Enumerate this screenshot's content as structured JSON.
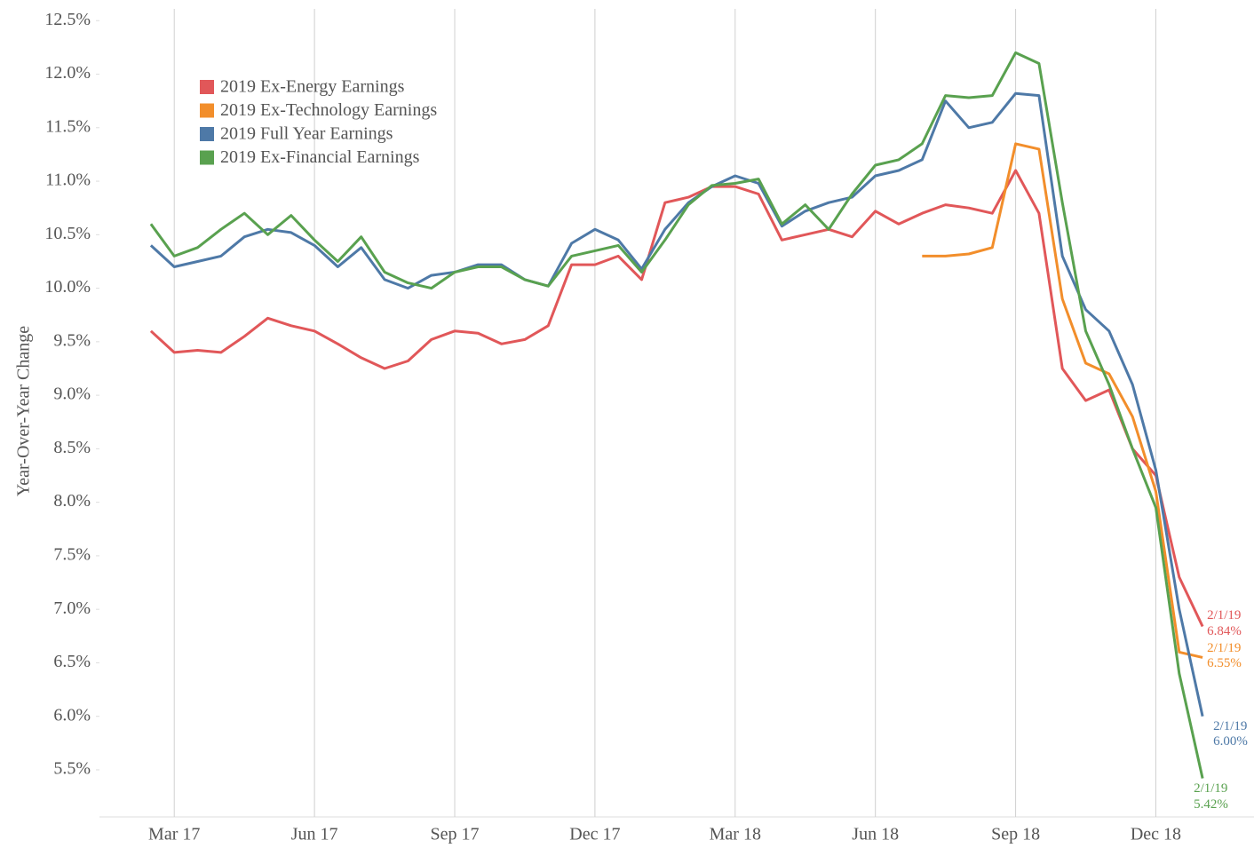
{
  "chart_data": {
    "type": "line",
    "y_label": "Year-Over-Year Change",
    "x": [
      1.5,
      2.0,
      2.5,
      3.0,
      3.5,
      4.0,
      4.5,
      5.0,
      5.5,
      6.0,
      6.5,
      7.0,
      7.5,
      8.0,
      8.5,
      9.0,
      9.5,
      10.0,
      10.5,
      11.0,
      11.5,
      12.0,
      12.5,
      13.0,
      13.5,
      14.0,
      14.5,
      15.0,
      15.5,
      16.0,
      16.5,
      17.0,
      17.5,
      18.0,
      18.5,
      19.0,
      19.5,
      20.0,
      20.5,
      21.0,
      21.5,
      22.0,
      22.5,
      23.0,
      23.5,
      24.0
    ],
    "xlim": [
      0.4,
      25.1
    ],
    "xticks": [
      {
        "value": 2,
        "label": "Mar 17"
      },
      {
        "value": 5,
        "label": "Jun 17"
      },
      {
        "value": 8,
        "label": "Sep 17"
      },
      {
        "value": 11,
        "label": "Dec 17"
      },
      {
        "value": 14,
        "label": "Mar 18"
      },
      {
        "value": 17,
        "label": "Jun 18"
      },
      {
        "value": 20,
        "label": "Sep 18"
      },
      {
        "value": 23,
        "label": "Dec 18"
      }
    ],
    "ylim": [
      5.06,
      12.61
    ],
    "yticks": [
      {
        "value": 5.5,
        "label": "5.5%"
      },
      {
        "value": 6.0,
        "label": "6.0%"
      },
      {
        "value": 6.5,
        "label": "6.5%"
      },
      {
        "value": 7.0,
        "label": "7.0%"
      },
      {
        "value": 7.5,
        "label": "7.5%"
      },
      {
        "value": 8.0,
        "label": "8.0%"
      },
      {
        "value": 8.5,
        "label": "8.5%"
      },
      {
        "value": 9.0,
        "label": "9.0%"
      },
      {
        "value": 9.5,
        "label": "9.5%"
      },
      {
        "value": 10.0,
        "label": "10.0%"
      },
      {
        "value": 10.5,
        "label": "10.5%"
      },
      {
        "value": 11.0,
        "label": "11.0%"
      },
      {
        "value": 11.5,
        "label": "11.5%"
      },
      {
        "value": 12.0,
        "label": "12.0%"
      },
      {
        "value": 12.5,
        "label": "12.5%"
      }
    ],
    "grid": "x",
    "legend": "top-left",
    "series": [
      {
        "name": "2019 Ex-Energy Earnings",
        "color": "#e15759",
        "end_date_label": "2/1/19",
        "values": [
          9.6,
          9.4,
          9.42,
          9.4,
          9.55,
          9.72,
          9.65,
          9.6,
          9.48,
          9.35,
          9.25,
          9.32,
          9.52,
          9.6,
          9.58,
          9.48,
          9.52,
          9.65,
          10.22,
          10.22,
          10.3,
          10.08,
          10.8,
          10.85,
          10.95,
          10.95,
          10.88,
          10.45,
          10.5,
          10.55,
          10.48,
          10.72,
          10.6,
          10.7,
          10.78,
          10.75,
          10.7,
          11.1,
          10.7,
          9.25,
          8.95,
          9.05,
          8.5,
          8.25,
          7.3,
          6.84
        ],
        "value_labels": [
          null,
          null,
          null,
          null,
          null,
          null,
          null,
          null,
          null,
          null,
          null,
          null,
          null,
          null,
          null,
          null,
          null,
          null,
          null,
          null,
          null,
          null,
          null,
          null,
          null,
          null,
          null,
          null,
          null,
          null,
          null,
          null,
          null,
          null,
          null,
          null,
          null,
          null,
          null,
          null,
          null,
          null,
          null,
          null,
          null,
          "6.84%"
        ]
      },
      {
        "name": "2019 Ex-Technology Earnings",
        "color": "#f28e2b",
        "end_date_label": "2/1/19",
        "values": [
          null,
          null,
          null,
          null,
          null,
          null,
          null,
          null,
          null,
          null,
          null,
          null,
          null,
          null,
          null,
          null,
          null,
          null,
          null,
          null,
          null,
          null,
          null,
          null,
          null,
          null,
          null,
          null,
          null,
          null,
          null,
          null,
          null,
          10.3,
          10.3,
          10.32,
          10.38,
          11.35,
          11.3,
          9.9,
          9.3,
          9.2,
          8.8,
          8.1,
          6.6,
          6.55
        ],
        "value_labels": [
          null,
          null,
          null,
          null,
          null,
          null,
          null,
          null,
          null,
          null,
          null,
          null,
          null,
          null,
          null,
          null,
          null,
          null,
          null,
          null,
          null,
          null,
          null,
          null,
          null,
          null,
          null,
          null,
          null,
          null,
          null,
          null,
          null,
          null,
          null,
          null,
          null,
          null,
          null,
          null,
          null,
          null,
          null,
          null,
          null,
          "6.55%"
        ]
      },
      {
        "name": "2019 Full Year Earnings",
        "color": "#4e79a7",
        "end_date_label": "2/1/19",
        "values": [
          10.4,
          10.2,
          10.25,
          10.3,
          10.48,
          10.55,
          10.52,
          10.4,
          10.2,
          10.38,
          10.08,
          10.0,
          10.12,
          10.15,
          10.22,
          10.22,
          10.08,
          10.02,
          10.42,
          10.55,
          10.45,
          10.18,
          10.55,
          10.8,
          10.95,
          11.05,
          10.98,
          10.58,
          10.72,
          10.8,
          10.85,
          11.05,
          11.1,
          11.2,
          11.75,
          11.5,
          11.55,
          11.82,
          11.8,
          10.3,
          9.8,
          9.6,
          9.1,
          8.3,
          7.0,
          6.0
        ],
        "value_labels": [
          null,
          null,
          null,
          null,
          null,
          null,
          null,
          null,
          null,
          null,
          null,
          null,
          null,
          null,
          null,
          null,
          null,
          null,
          null,
          null,
          null,
          null,
          null,
          null,
          null,
          null,
          null,
          null,
          null,
          null,
          null,
          null,
          null,
          null,
          null,
          null,
          null,
          null,
          null,
          null,
          null,
          null,
          null,
          null,
          null,
          "6.00%"
        ]
      },
      {
        "name": "2019 Ex-Financial Earnings",
        "color": "#59a14f",
        "end_date_label": "2/1/19",
        "values": [
          10.6,
          10.3,
          10.38,
          10.55,
          10.7,
          10.5,
          10.68,
          10.45,
          10.25,
          10.48,
          10.15,
          10.05,
          10.0,
          10.15,
          10.2,
          10.2,
          10.08,
          10.02,
          10.3,
          10.35,
          10.4,
          10.15,
          10.45,
          10.78,
          10.96,
          10.98,
          11.02,
          10.6,
          10.78,
          10.55,
          10.88,
          11.15,
          11.2,
          11.35,
          11.8,
          11.78,
          11.8,
          12.2,
          12.1,
          10.8,
          9.6,
          9.1,
          8.5,
          7.95,
          6.4,
          5.42
        ],
        "value_labels": [
          null,
          null,
          null,
          null,
          null,
          null,
          null,
          null,
          null,
          null,
          null,
          null,
          null,
          null,
          null,
          null,
          null,
          null,
          null,
          null,
          null,
          null,
          null,
          null,
          null,
          null,
          null,
          null,
          null,
          null,
          null,
          null,
          null,
          null,
          null,
          null,
          null,
          null,
          null,
          null,
          null,
          null,
          null,
          null,
          null,
          "5.42%"
        ]
      }
    ]
  }
}
